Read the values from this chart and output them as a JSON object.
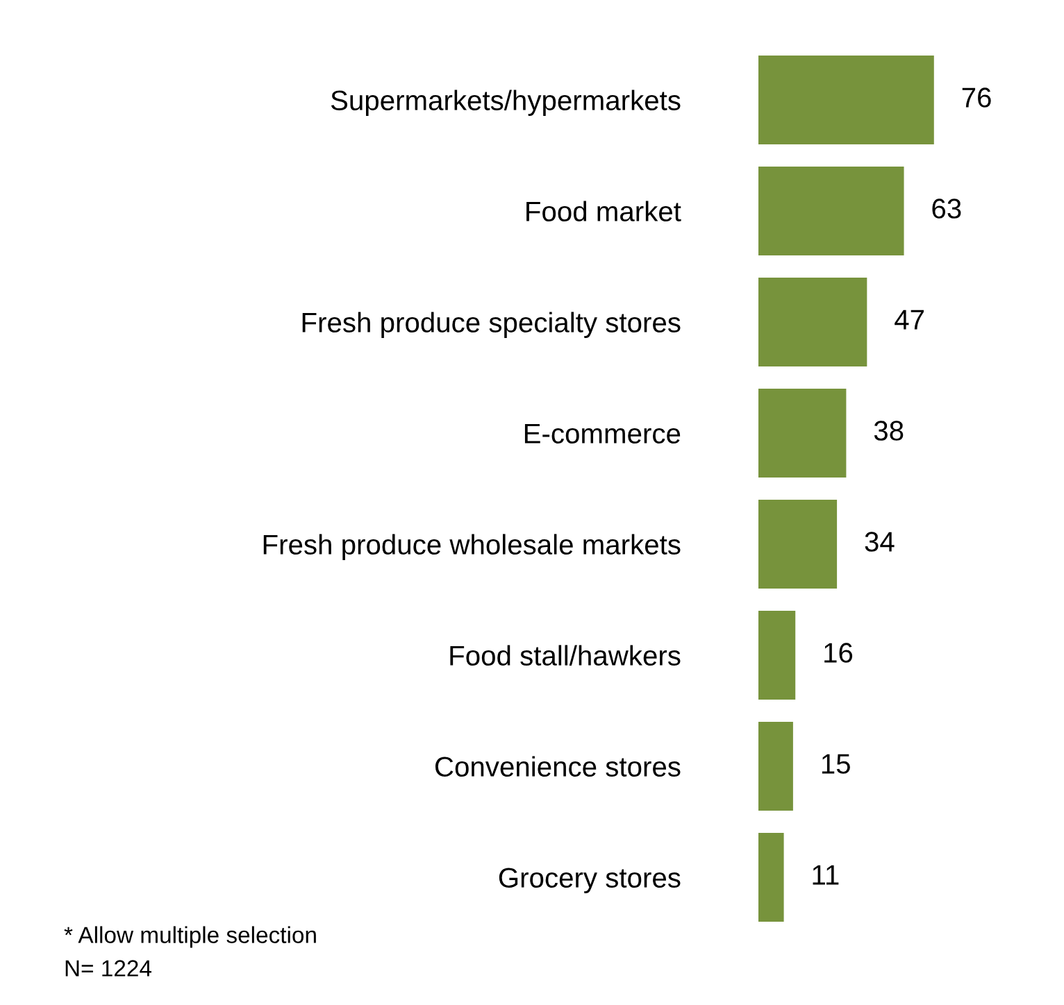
{
  "chart_data": {
    "type": "bar",
    "orientation": "horizontal",
    "categories": [
      "Supermarkets/hypermarkets",
      "Food market",
      "Fresh produce specialty stores",
      "E-commerce",
      "Fresh produce wholesale markets",
      "Food stall/hawkers",
      "Convenience stores",
      "Grocery stores"
    ],
    "values": [
      76,
      63,
      47,
      38,
      34,
      16,
      15,
      11
    ],
    "color": "#77933c",
    "data_labels": true,
    "grid": false,
    "legend": false,
    "annotations": [
      "* Allow multiple selection",
      "N= 1224"
    ]
  }
}
